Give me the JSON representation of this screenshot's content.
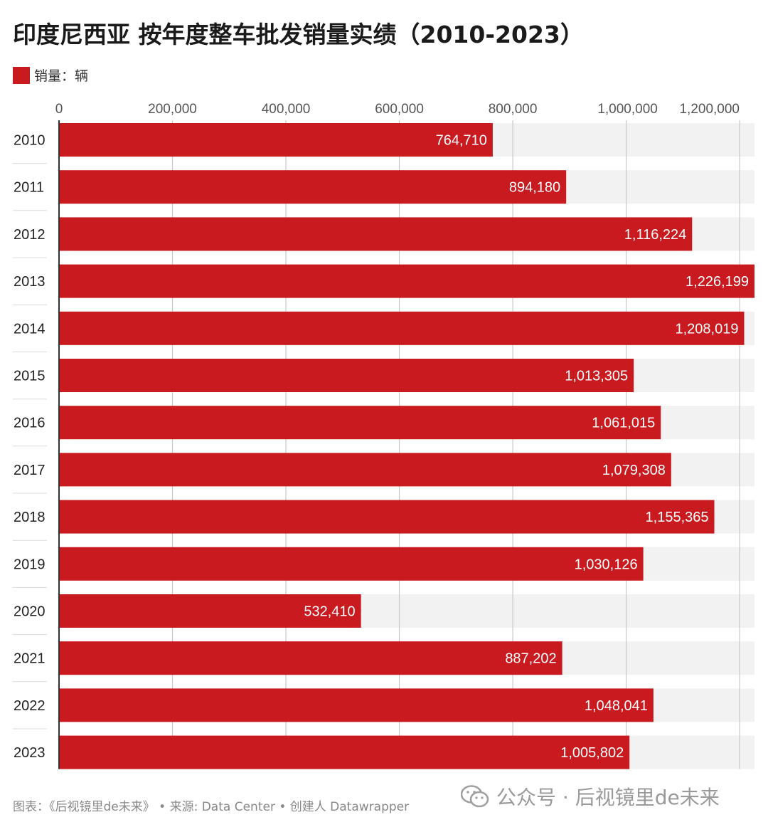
{
  "title": "印度尼西亚 按年度整车批发销量实绩（2010-2023）",
  "footer": "图表：《后视镜里de未来》 • 来源: Data Center • 创建人 Datawrapper",
  "watermark": {
    "text": "公众号 · 后视镜里de未来",
    "icon": "wechat-icon"
  },
  "colors": {
    "bar": "#c91a1f",
    "track": "#f2f2f2",
    "grid": "#c8c8c8"
  },
  "chart_data": {
    "type": "bar",
    "orientation": "horizontal",
    "categories": [
      "2010",
      "2011",
      "2012",
      "2013",
      "2014",
      "2015",
      "2016",
      "2017",
      "2018",
      "2019",
      "2020",
      "2021",
      "2022",
      "2023"
    ],
    "series": [
      {
        "name": "销量：辆",
        "values": [
          764710,
          894180,
          1116224,
          1226199,
          1208019,
          1013305,
          1061015,
          1079308,
          1155365,
          1030126,
          532410,
          887202,
          1048041,
          1005802
        ]
      }
    ],
    "value_labels": [
      "764,710",
      "894,180",
      "1,116,224",
      "1,226,199",
      "1,208,019",
      "1,013,305",
      "1,061,015",
      "1,079,308",
      "1,155,365",
      "1,030,126",
      "532,410",
      "887,202",
      "1,048,041",
      "1,005,802"
    ],
    "x_ticks": [
      0,
      200000,
      400000,
      600000,
      800000,
      1000000,
      1200000
    ],
    "x_tick_labels": [
      "0",
      "200,000",
      "400,000",
      "600,000",
      "800,000",
      "1,000,000",
      "1,200,000"
    ],
    "xlim": [
      0,
      1226199
    ],
    "legend": "top-left",
    "grid": true
  }
}
